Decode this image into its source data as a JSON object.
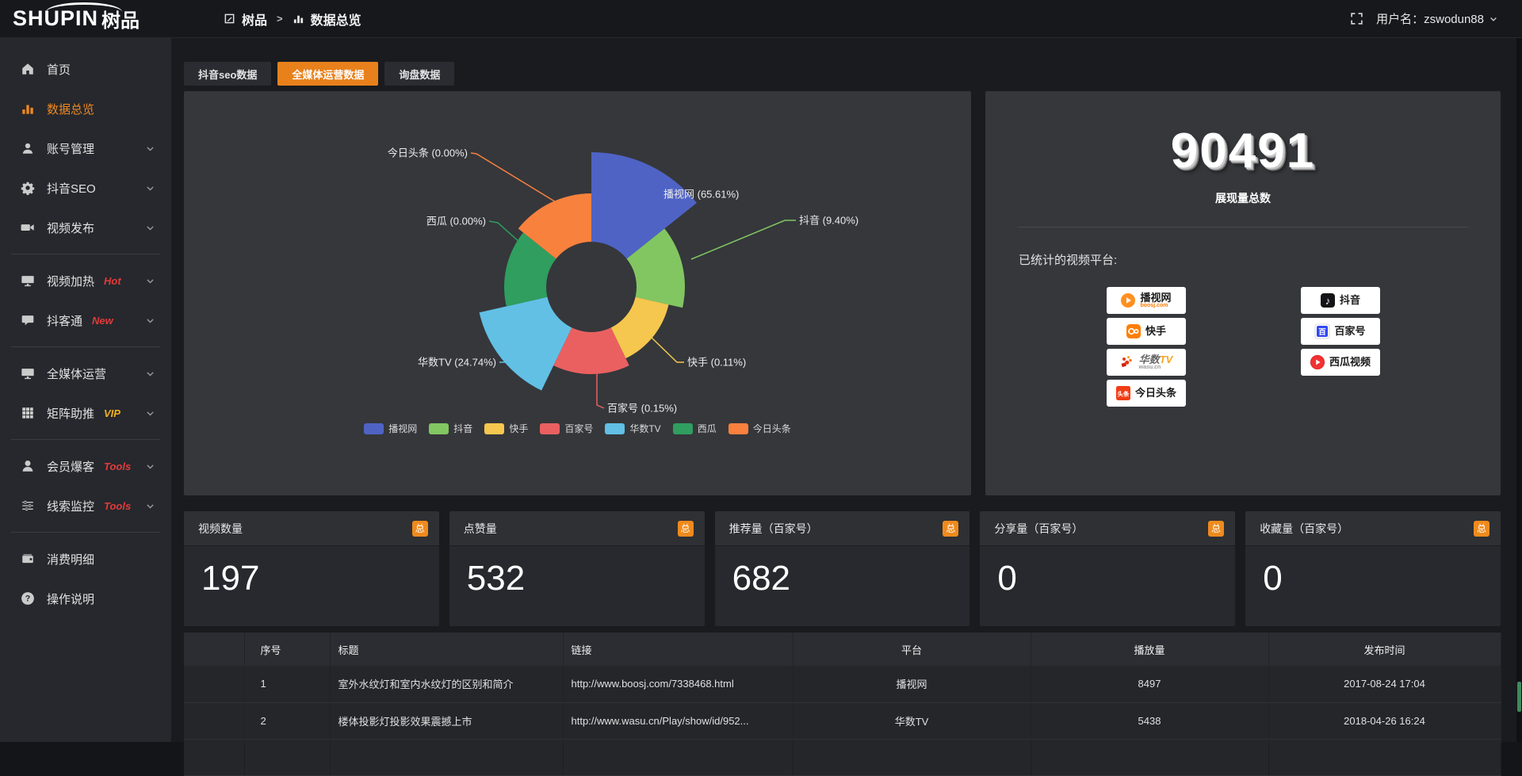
{
  "header": {
    "logo_main": "SHUPIN",
    "logo_cn": "树品",
    "breadcrumb_app": "树品",
    "breadcrumb_sep": ">",
    "breadcrumb_page": "数据总览",
    "username": "用户名：zswodun88"
  },
  "sidebar": {
    "groups": [
      [
        {
          "label": "首页",
          "icon": "home"
        },
        {
          "label": "数据总览",
          "icon": "chart",
          "active": true
        },
        {
          "label": "账号管理",
          "icon": "user",
          "chevron": true
        },
        {
          "label": "抖音SEO",
          "icon": "gear",
          "chevron": true
        },
        {
          "label": "视频发布",
          "icon": "video",
          "chevron": true
        }
      ],
      [
        {
          "label": "视频加热",
          "icon": "screen",
          "tag": "Hot",
          "tag_color": "#e23a3a",
          "chevron": true
        },
        {
          "label": "抖客通",
          "icon": "chat",
          "tag": "New",
          "tag_color": "#e23a3a",
          "chevron": true
        }
      ],
      [
        {
          "label": "全媒体运营",
          "icon": "monitor",
          "chevron": true
        },
        {
          "label": "矩阵助推",
          "icon": "grid",
          "tag": "VIP",
          "tag_color": "#f0b11d",
          "chevron": true
        }
      ],
      [
        {
          "label": "会员爆客",
          "icon": "person",
          "tag": "Tools",
          "tag_color": "#e23a3a",
          "chevron": true
        },
        {
          "label": "线索监控",
          "icon": "sliders",
          "tag": "Tools",
          "tag_color": "#e23a3a",
          "chevron": true
        }
      ],
      [
        {
          "label": "消费明细",
          "icon": "wallet"
        },
        {
          "label": "操作说明",
          "icon": "question"
        }
      ]
    ]
  },
  "tabs": [
    {
      "label": "抖音seo数据",
      "active": false
    },
    {
      "label": "全媒体运营数据",
      "active": true
    },
    {
      "label": "询盘数据",
      "active": false
    }
  ],
  "chart_data": {
    "type": "pie",
    "variant": "nightingale-rose-donut",
    "legend_position": "bottom",
    "labels": [
      "播视网",
      "抖音",
      "快手",
      "百家号",
      "华数TV",
      "西瓜",
      "今日头条"
    ],
    "values_percent": [
      65.61,
      9.4,
      0.11,
      0.15,
      24.74,
      0.0,
      0.0
    ],
    "colors": [
      "#4f63c5",
      "#82c662",
      "#f5c74e",
      "#ea6060",
      "#62c0e5",
      "#2f9e5f",
      "#f8813e"
    ],
    "label_format": "{name} ({value}%)"
  },
  "summary": {
    "total": "90491",
    "total_label": "展现量总数",
    "platforms_title": "已统计的视频平台:",
    "badges": [
      {
        "name": "播视网",
        "sub": "boosj.com",
        "icon": "boosj"
      },
      {
        "name": "抖音",
        "icon": "douyin"
      },
      {
        "name": "快手",
        "icon": "kuaishou"
      },
      {
        "name": "百家号",
        "icon": "baijia"
      },
      {
        "name": "华数TV",
        "sub": "wasu.cn",
        "icon": "wasu"
      },
      {
        "name": "西瓜视频",
        "icon": "xigua"
      },
      {
        "name": "今日头条",
        "icon": "toutiao"
      }
    ]
  },
  "stat_cards": [
    {
      "title": "视频数量",
      "badge": "总",
      "value": "197"
    },
    {
      "title": "点赞量",
      "badge": "总",
      "value": "532"
    },
    {
      "title": "推荐量（百家号）",
      "badge": "总",
      "value": "682"
    },
    {
      "title": "分享量（百家号）",
      "badge": "总",
      "value": "0"
    },
    {
      "title": "收藏量（百家号）",
      "badge": "总",
      "value": "0"
    }
  ],
  "table": {
    "headers": [
      "序号",
      "标题",
      "链接",
      "平台",
      "播放量",
      "发布时间"
    ],
    "rows": [
      {
        "seq": "1",
        "title": "室外水纹灯和室内水纹灯的区别和简介",
        "link": "http://www.boosj.com/7338468.html",
        "platform": "播视网",
        "plays": "8497",
        "time": "2017-08-24 17:04"
      },
      {
        "seq": "2",
        "title": "楼体投影灯投影效果震撼上市",
        "link": "http://www.wasu.cn/Play/show/id/952...",
        "platform": "华数TV",
        "plays": "5438",
        "time": "2018-04-26 16:24"
      },
      {
        "seq": "",
        "title": "",
        "link": "",
        "platform": "",
        "plays": "",
        "time": ""
      }
    ]
  }
}
